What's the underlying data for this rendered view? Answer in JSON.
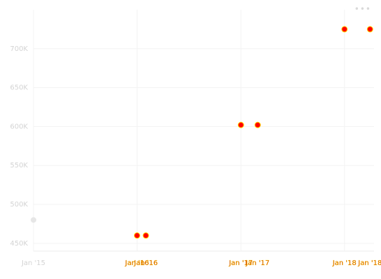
{
  "toolbar": {
    "menu_glyph": "•••",
    "menu_icon": "more-horizontal-icon"
  },
  "colors": {
    "grid": "#f3f3f3",
    "axis_text": "#d4d4d4",
    "point_fill": "#ff0000",
    "point_stroke": "#ffd700",
    "annotation_text": "#cc3300",
    "annotation_stroke": "#ffd700",
    "muted_point": "#e6e6e6"
  },
  "chart_data": {
    "type": "scatter",
    "title": "",
    "xlabel": "",
    "ylabel": "",
    "grid": true,
    "y_ticks": [
      {
        "value": 450000,
        "label": "450K"
      },
      {
        "value": 500000,
        "label": "500K"
      },
      {
        "value": 550000,
        "label": "550K"
      },
      {
        "value": 600000,
        "label": "600K"
      },
      {
        "value": 650000,
        "label": "650K"
      },
      {
        "value": 700000,
        "label": "700K"
      }
    ],
    "ylim": [
      440000,
      750000
    ],
    "x_ticks": [
      {
        "value": "2015-01-01",
        "label": "Jan '15"
      },
      {
        "value": "2016-01-01",
        "label": "Jan '16"
      },
      {
        "value": "2017-01-01",
        "label": "Jan '17"
      },
      {
        "value": "2018-01-01",
        "label": "Jan '18"
      }
    ],
    "xlim": [
      "2015-01-01",
      "2018-04-15"
    ],
    "points": [
      {
        "x": "2015-01-01",
        "y": 480000,
        "highlight": false
      },
      {
        "x": "2016-01-01",
        "y": 460000,
        "highlight": true
      },
      {
        "x": "2016-02-01",
        "y": 460000,
        "highlight": true
      },
      {
        "x": "2017-01-01",
        "y": 602000,
        "highlight": true
      },
      {
        "x": "2017-03-01",
        "y": 602000,
        "highlight": true
      },
      {
        "x": "2018-01-01",
        "y": 725000,
        "highlight": true
      },
      {
        "x": "2018-04-01",
        "y": 725000,
        "highlight": true
      }
    ],
    "annotations": [
      {
        "x": "2016-01-01",
        "label": "Jan '16"
      },
      {
        "x": "2016-02-01",
        "label": "Jan '16"
      },
      {
        "x": "2017-01-01",
        "label": "Jan '17"
      },
      {
        "x": "2017-03-01",
        "label": "Jan '17"
      },
      {
        "x": "2018-01-01",
        "label": "Jan '18"
      },
      {
        "x": "2018-04-01",
        "label": "Jan '18"
      }
    ]
  }
}
